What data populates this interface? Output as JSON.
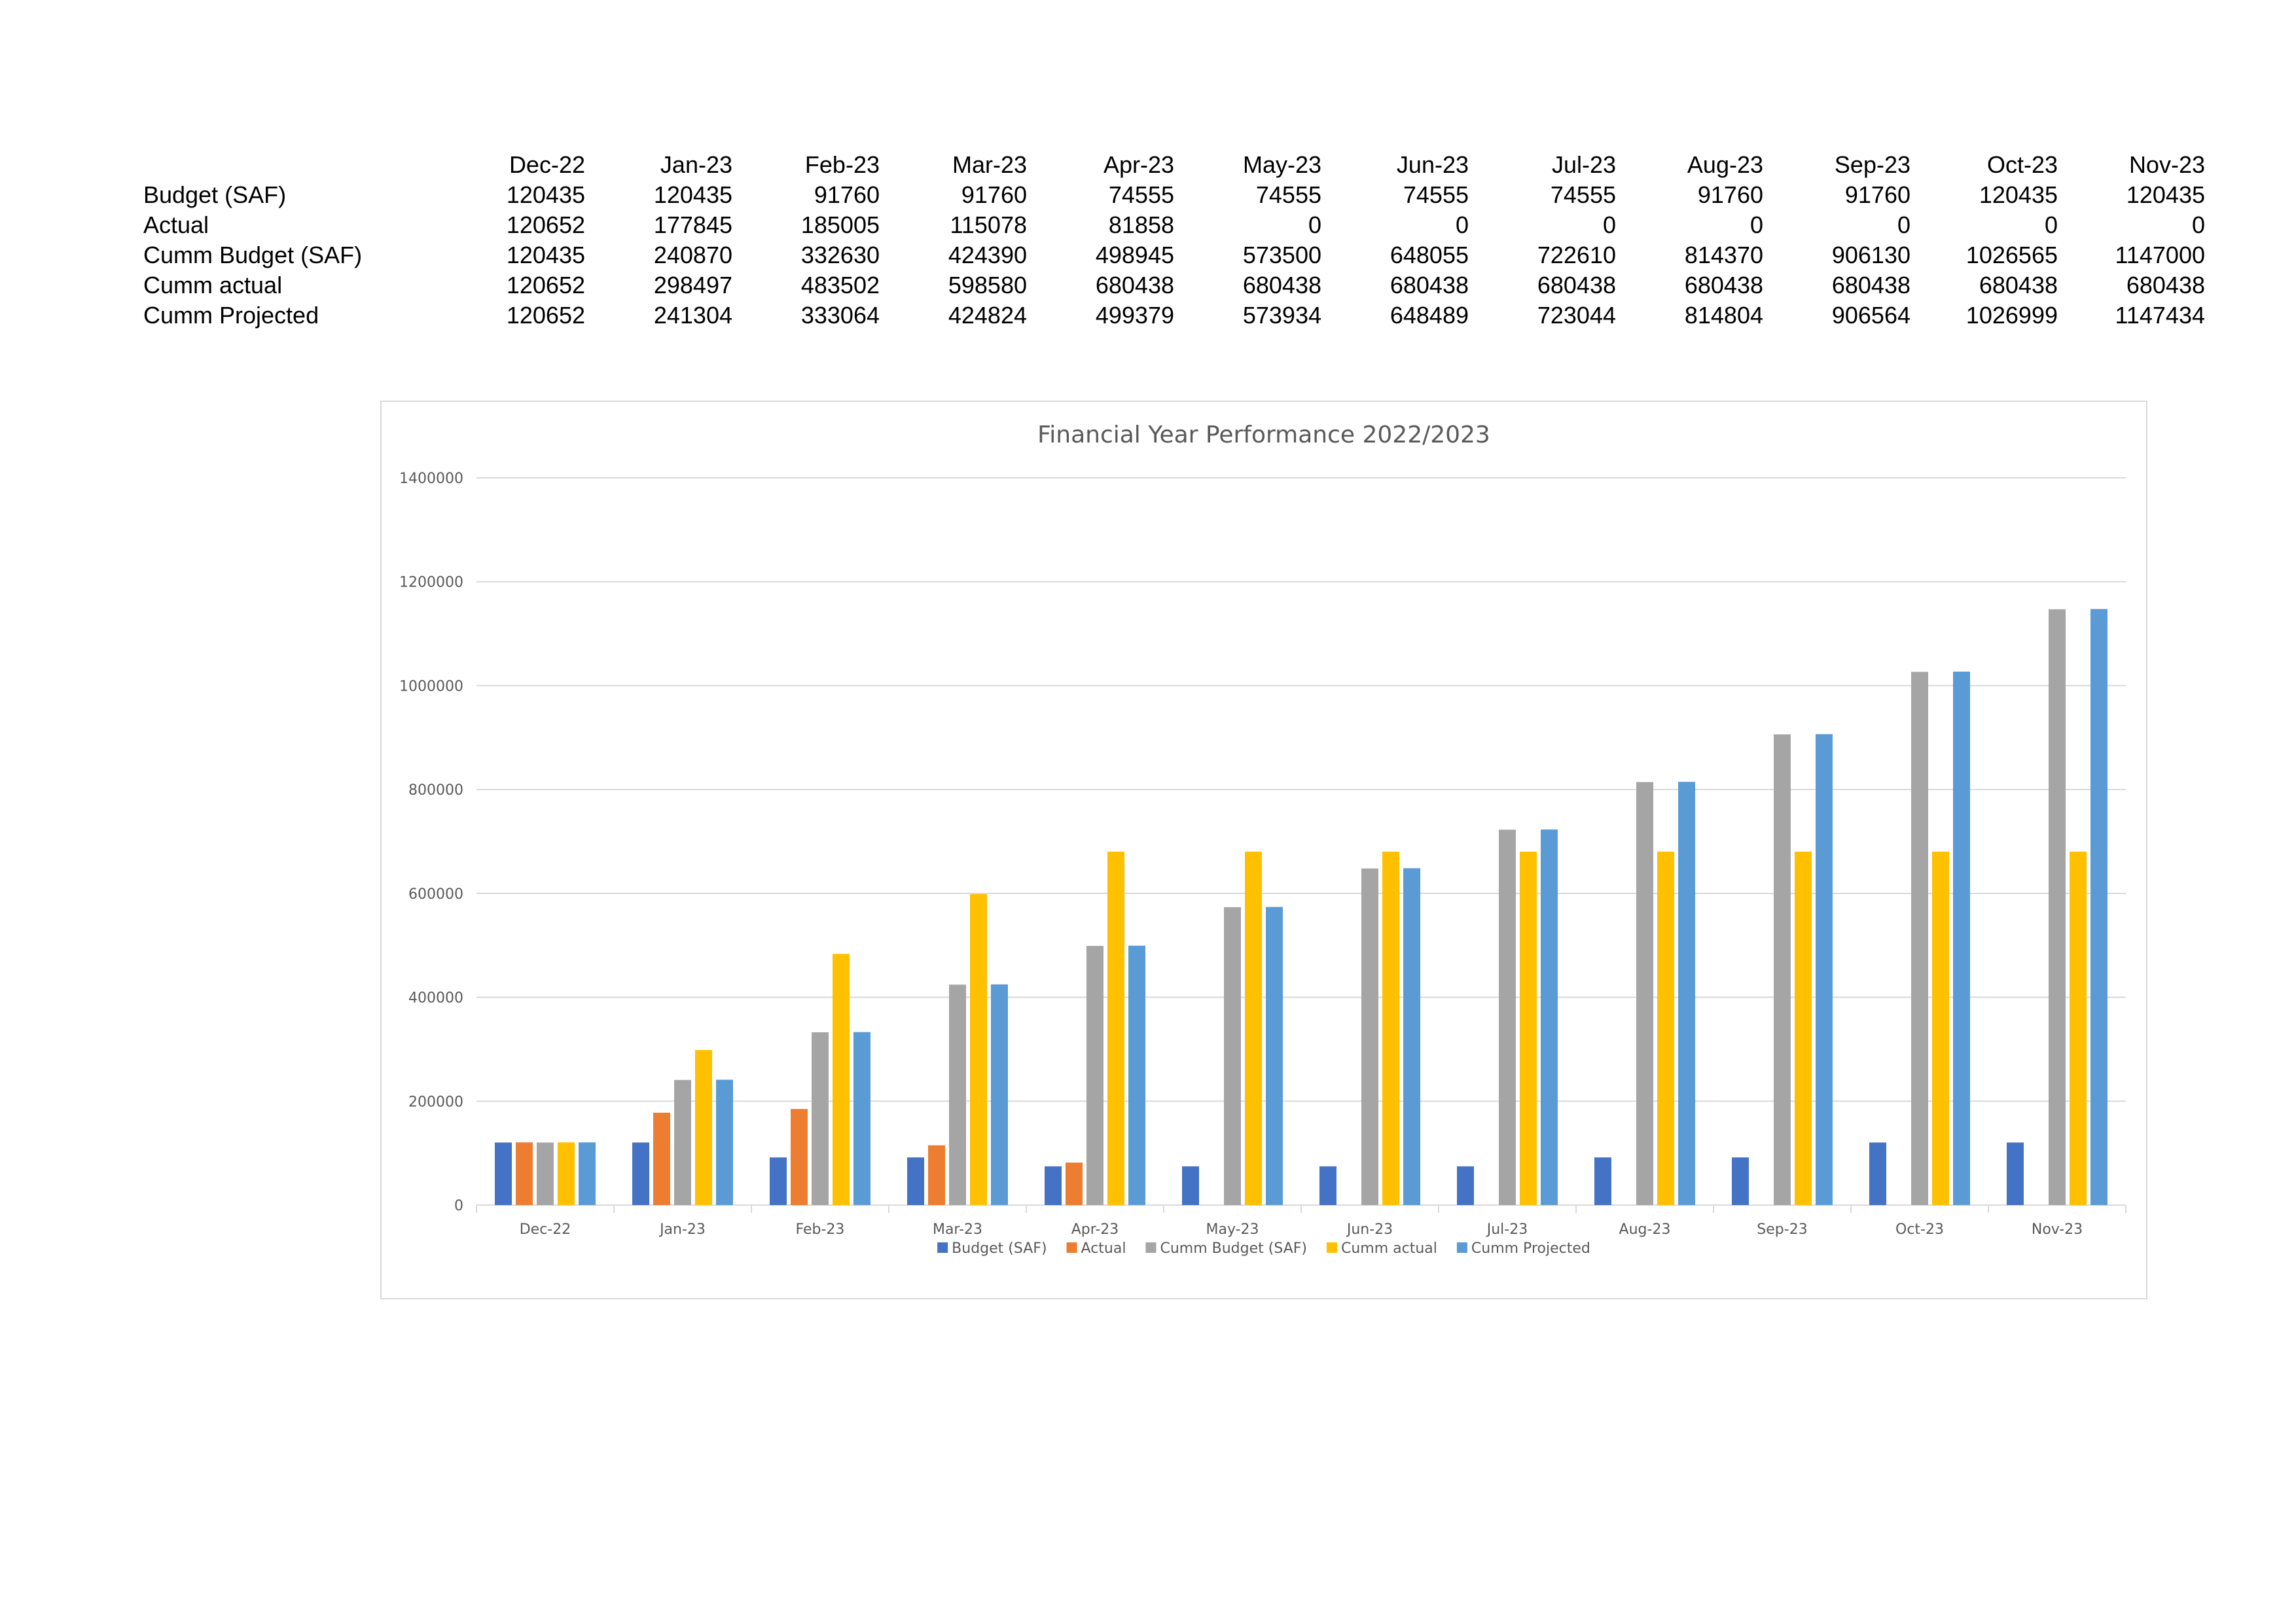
{
  "table": {
    "months": [
      "Dec-22",
      "Jan-23",
      "Feb-23",
      "Mar-23",
      "Apr-23",
      "May-23",
      "Jun-23",
      "Jul-23",
      "Aug-23",
      "Sep-23",
      "Oct-23",
      "Nov-23"
    ],
    "rows": [
      {
        "label": "Budget (SAF)",
        "values": [
          "120435",
          "120435",
          "91760",
          "91760",
          "74555",
          "74555",
          "74555",
          "74555",
          "91760",
          "91760",
          "120435",
          "120435"
        ]
      },
      {
        "label": "Actual",
        "values": [
          "120652",
          "177845",
          "185005",
          "115078",
          "81858",
          "0",
          "0",
          "0",
          "0",
          "0",
          "0",
          "0"
        ]
      },
      {
        "label": "Cumm  Budget (SAF)",
        "values": [
          "120435",
          "240870",
          "332630",
          "424390",
          "498945",
          "573500",
          "648055",
          "722610",
          "814370",
          "906130",
          "1026565",
          "1147000"
        ]
      },
      {
        "label": "Cumm actual",
        "values": [
          "120652",
          "298497",
          "483502",
          "598580",
          "680438",
          "680438",
          "680438",
          "680438",
          "680438",
          "680438",
          "680438",
          "680438"
        ]
      },
      {
        "label": "Cumm Projected",
        "values": [
          "120652",
          "241304",
          "333064",
          "424824",
          "499379",
          "573934",
          "648489",
          "723044",
          "814804",
          "906564",
          "1026999",
          "1147434"
        ]
      }
    ]
  },
  "chart_data": {
    "type": "bar",
    "title": "Financial Year Performance 2022/2023",
    "xlabel": "",
    "ylabel": "",
    "categories": [
      "Dec-22",
      "Jan-23",
      "Feb-23",
      "Mar-23",
      "Apr-23",
      "May-23",
      "Jun-23",
      "Jul-23",
      "Aug-23",
      "Sep-23",
      "Oct-23",
      "Nov-23"
    ],
    "ylim": [
      0,
      1400000
    ],
    "yticks": [
      0,
      200000,
      400000,
      600000,
      800000,
      1000000,
      1200000,
      1400000
    ],
    "ytick_labels": [
      "0",
      "200000",
      "400000",
      "600000",
      "800000",
      "1000000",
      "1200000",
      "1400000"
    ],
    "grid": true,
    "legend": "bottom",
    "series": [
      {
        "name": "Budget (SAF)",
        "color": "#4472c4",
        "values": [
          120435,
          120435,
          91760,
          91760,
          74555,
          74555,
          74555,
          74555,
          91760,
          91760,
          120435,
          120435
        ]
      },
      {
        "name": "Actual",
        "color": "#ed7d31",
        "values": [
          120652,
          177845,
          185005,
          115078,
          81858,
          0,
          0,
          0,
          0,
          0,
          0,
          0
        ]
      },
      {
        "name": "Cumm  Budget (SAF)",
        "color": "#a5a5a5",
        "values": [
          120435,
          240870,
          332630,
          424390,
          498945,
          573500,
          648055,
          722610,
          814370,
          906130,
          1026565,
          1147000
        ]
      },
      {
        "name": "Cumm actual",
        "color": "#ffc000",
        "values": [
          120652,
          298497,
          483502,
          598580,
          680438,
          680438,
          680438,
          680438,
          680438,
          680438,
          680438,
          680438
        ]
      },
      {
        "name": "Cumm Projected",
        "color": "#5b9bd5",
        "values": [
          120652,
          241304,
          333064,
          424824,
          499379,
          573934,
          648489,
          723044,
          814804,
          906564,
          1026999,
          1147434
        ]
      }
    ],
    "colors": {
      "grid": "#d9d9d9",
      "axis_text": "#595959",
      "title_text": "#595959"
    }
  }
}
